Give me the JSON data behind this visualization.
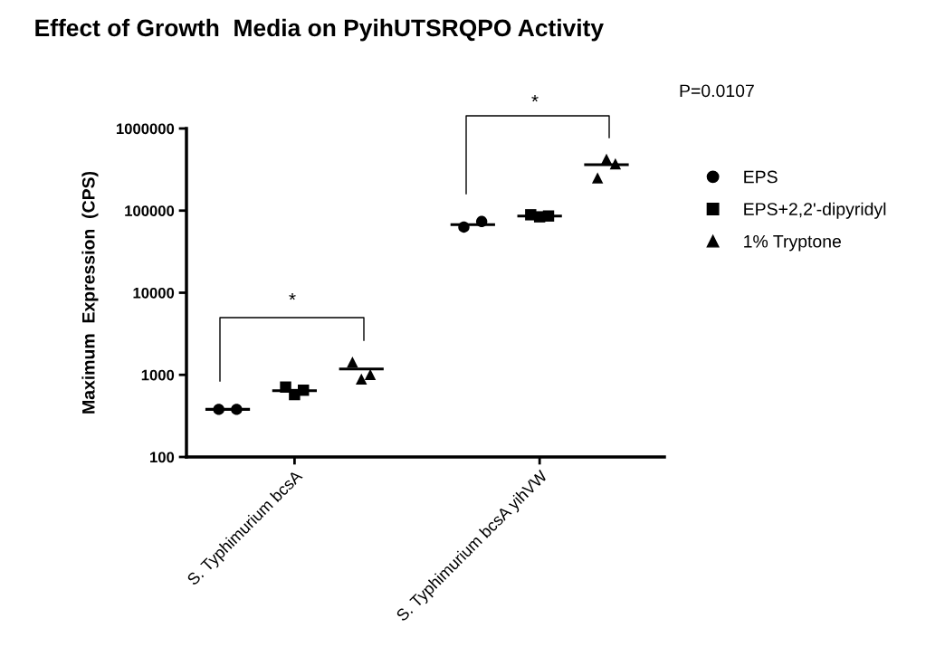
{
  "chart_data": {
    "type": "scatter",
    "title": "Effect of Growth  Media on PyihUTSRQPO Activity",
    "ylabel": "Maximum  Expression  (CPS)",
    "categories": [
      null,
      null,
      null,
      null,
      "S. Typhimurium bcsA",
      null,
      null,
      null,
      null,
      null,
      null,
      null,
      null,
      null,
      null,
      "S. Typhimurium bcsA yihVW",
      null,
      null,
      null,
      null
    ],
    "log": "y",
    "ylim": [
      100,
      1000000
    ],
    "yticks": [
      100,
      1000,
      10000,
      100000,
      1000000
    ],
    "grid": false,
    "legend": "right",
    "series": [
      {
        "name": "EPS",
        "color": "#000000",
        "marker": "circle",
        "values": [
          null,
          380,
          null,
          null,
          null,
          null,
          null,
          null,
          null,
          null,
          null,
          null,
          63000,
          null,
          null,
          null,
          null,
          null,
          null,
          null
        ]
      },
      {
        "color": "#000000",
        "marker": "circle",
        "values": [
          null,
          380,
          null,
          null,
          null,
          null,
          null,
          null,
          null,
          null,
          null,
          null,
          73600,
          null,
          null,
          null,
          null,
          null,
          null,
          null
        ]
      },
      {
        "name": "EPS+2,2'-dipyridyl",
        "color": "#000000",
        "marker": "square",
        "values": [
          null,
          null,
          null,
          null,
          710,
          null,
          null,
          null,
          null,
          null,
          null,
          null,
          null,
          null,
          null,
          89000,
          null,
          null,
          null,
          null
        ]
      },
      {
        "color": "#000000",
        "marker": "square",
        "values": [
          null,
          null,
          null,
          null,
          575,
          null,
          null,
          null,
          null,
          null,
          null,
          null,
          null,
          null,
          null,
          84000,
          null,
          null,
          null,
          null
        ]
      },
      {
        "color": "#000000",
        "marker": "square",
        "values": [
          null,
          null,
          null,
          null,
          650,
          null,
          null,
          null,
          null,
          null,
          null,
          null,
          null,
          null,
          null,
          86000,
          null,
          null,
          null,
          null
        ]
      },
      {
        "name": "1% Tryptone",
        "color": "#000000",
        "marker": "triangle",
        "values": [
          null,
          null,
          null,
          null,
          null,
          null,
          null,
          1430,
          null,
          null,
          null,
          null,
          null,
          null,
          null,
          null,
          null,
          null,
          250000,
          null
        ]
      },
      {
        "color": "#000000",
        "marker": "triangle",
        "values": [
          null,
          null,
          null,
          null,
          null,
          null,
          null,
          890,
          null,
          null,
          null,
          null,
          null,
          null,
          null,
          null,
          null,
          null,
          423000,
          null
        ]
      },
      {
        "color": "#000000",
        "marker": "triangle",
        "values": [
          null,
          null,
          null,
          null,
          null,
          null,
          null,
          1010,
          null,
          null,
          null,
          null,
          null,
          null,
          null,
          null,
          null,
          null,
          372000,
          null
        ]
      },
      {
        "type": "line",
        "color": "#000000",
        "line_style": "solid",
        "values": [
          380,
          380,
          380,
          null,
          null,
          null,
          null,
          null,
          null,
          null,
          null,
          67400,
          67400,
          67400,
          null,
          null,
          null,
          null,
          null,
          null
        ]
      },
      {
        "type": "line",
        "color": "#000000",
        "line_style": "solid",
        "values": [
          null,
          null,
          null,
          640,
          640,
          640,
          null,
          null,
          null,
          null,
          null,
          null,
          null,
          null,
          86000,
          86000,
          86000,
          null,
          null,
          null
        ]
      },
      {
        "type": "line",
        "color": "#000000",
        "line_style": "solid",
        "values": [
          null,
          null,
          null,
          null,
          null,
          null,
          1180,
          1180,
          1180,
          null,
          null,
          null,
          null,
          null,
          null,
          null,
          null,
          362000,
          362000,
          362000
        ]
      }
    ],
    "annotations": [
      "*",
      "*",
      "P=0.0107"
    ]
  }
}
